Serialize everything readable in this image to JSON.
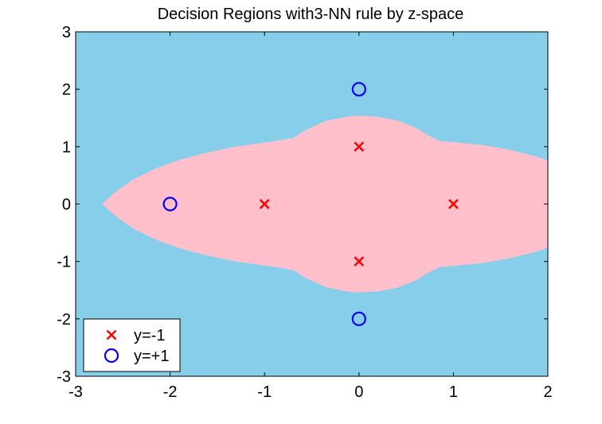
{
  "chart_data": {
    "type": "scatter",
    "title": "Decision Regions with3-NN rule by z-space",
    "xlim": [
      -3,
      2
    ],
    "ylim": [
      -3,
      3
    ],
    "xticks": [
      -3,
      -2,
      -1,
      0,
      1,
      2
    ],
    "yticks": [
      -3,
      -2,
      -1,
      0,
      1,
      2,
      3
    ],
    "grid": false,
    "legend_position": "bottom-left",
    "colors": {
      "region_positive": "#87ceeb",
      "region_negative": "#ffc0cb",
      "class_negative": "#ff0000",
      "class_positive": "#0000ff"
    },
    "series": [
      {
        "name": "y=-1",
        "marker": "x",
        "color": "#ff0000",
        "points": [
          [
            0,
            1
          ],
          [
            -1,
            0
          ],
          [
            1,
            0
          ],
          [
            0,
            -1
          ]
        ]
      },
      {
        "name": "y=+1",
        "marker": "o",
        "color": "#0000ff",
        "points": [
          [
            0,
            2
          ],
          [
            -2,
            0
          ],
          [
            0,
            -2
          ]
        ]
      }
    ]
  }
}
